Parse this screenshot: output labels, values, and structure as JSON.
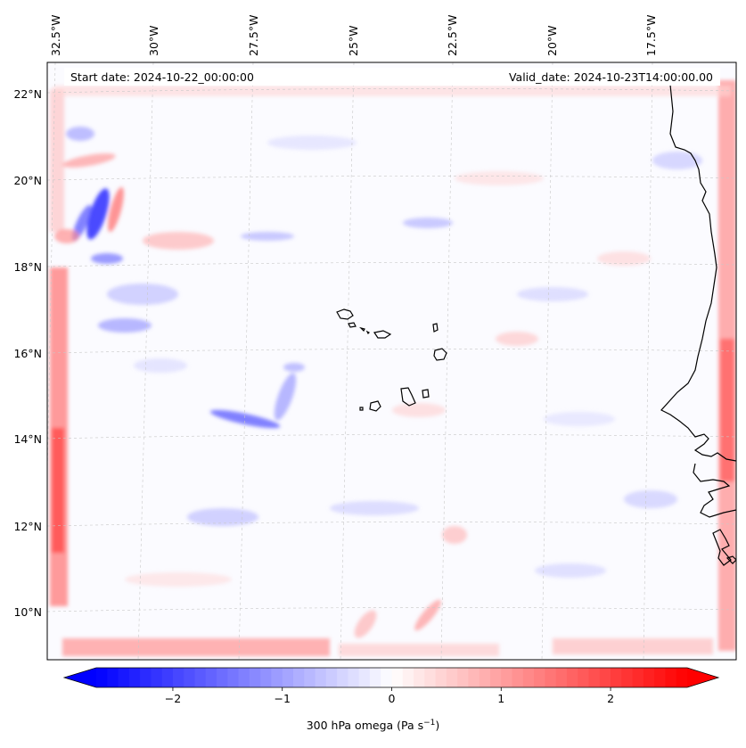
{
  "header": {
    "start_date": "Start date: 2024-10-22_00:00:00",
    "valid_date": "Valid_date: 2024-10-23T14:00:00.00"
  },
  "map": {
    "lon_labels": [
      "32.5°W",
      "30°W",
      "27.5°W",
      "25°W",
      "22.5°W",
      "20°W",
      "17.5°W"
    ],
    "lat_labels": [
      "22°N",
      "20°N",
      "18°N",
      "16°N",
      "14°N",
      "12°N",
      "10°N"
    ],
    "field": "300 hPa omega",
    "features": [
      "cape-verde-islands",
      "west-african-coastline"
    ]
  },
  "colorbar": {
    "label_main": "300 hPa omega (Pa s",
    "label_exp": "−1",
    "label_close": ")",
    "ticks": [
      -2,
      -1,
      0,
      1,
      2
    ],
    "tick_labels": [
      "−2",
      "−1",
      "0",
      "1",
      "2"
    ],
    "range": [
      -2.7,
      2.7
    ],
    "colormap": "bwr",
    "color_low": "#0000ff",
    "color_mid": "#ffffff",
    "color_high": "#ff0000"
  }
}
